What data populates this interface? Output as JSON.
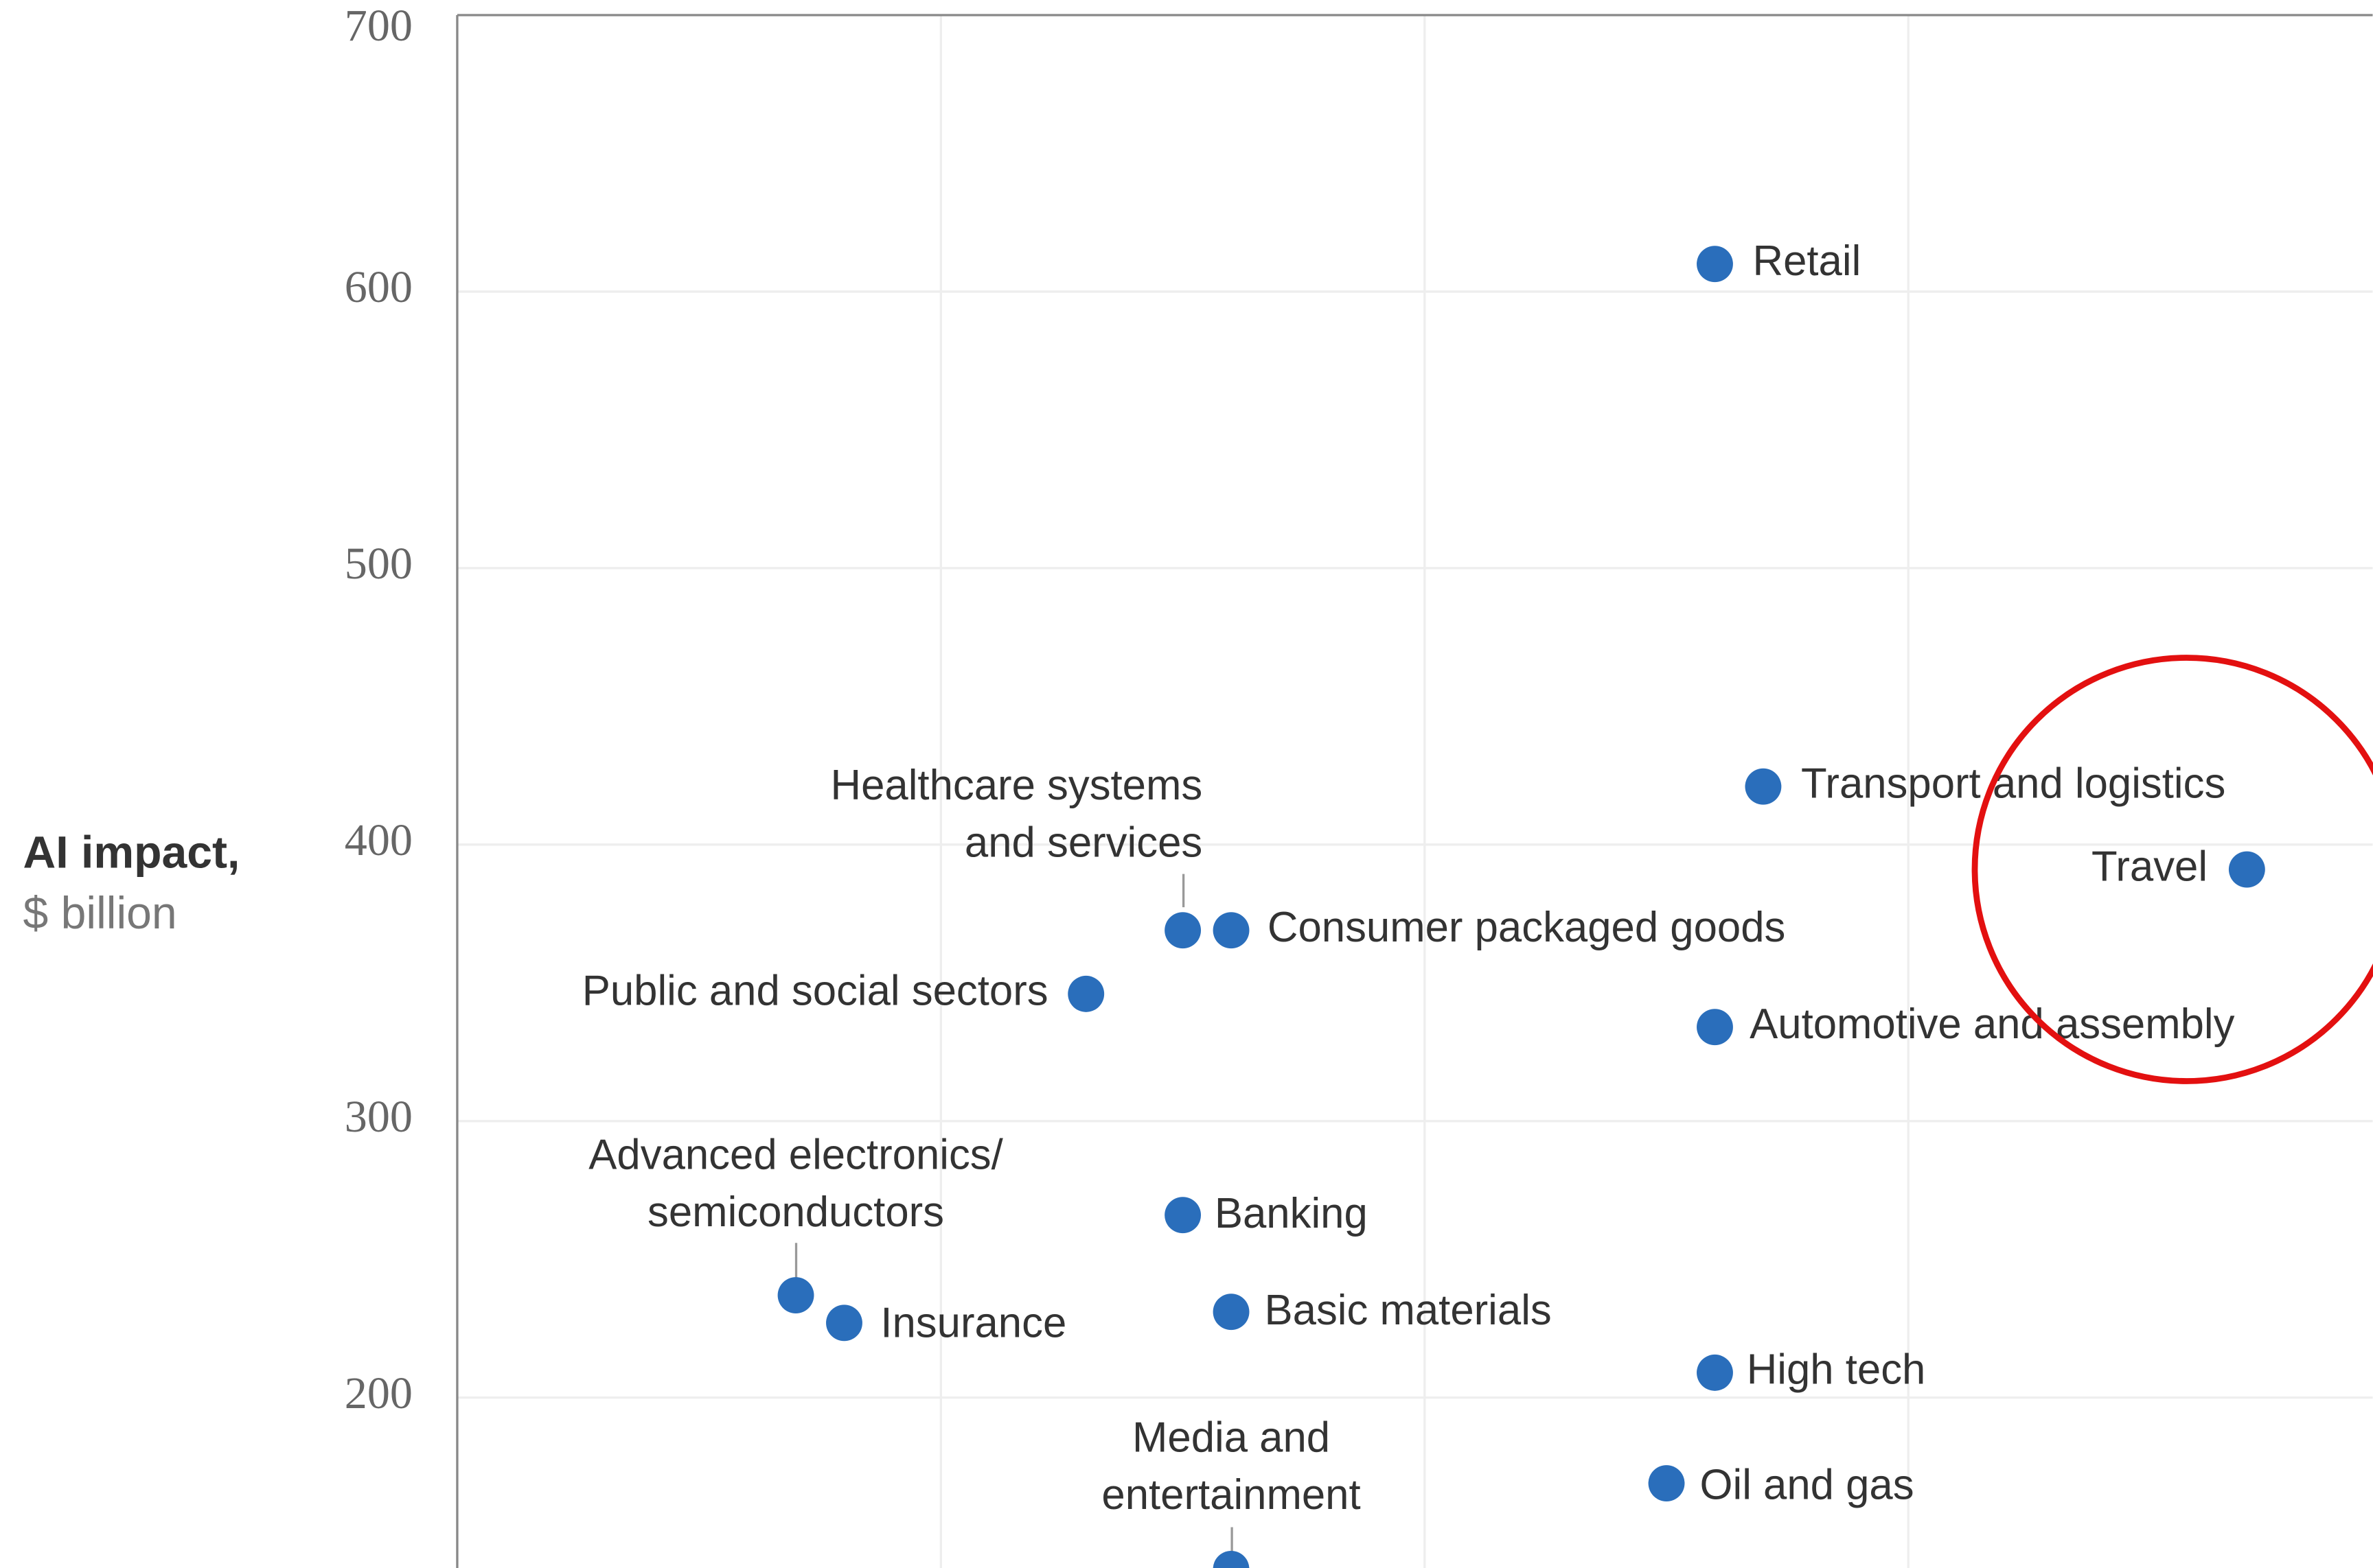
{
  "chart_data": {
    "type": "scatter",
    "y_label": [
      "AI impact,",
      "$ billion"
    ],
    "ylim": [
      140,
      700
    ],
    "yticks": [
      200,
      300,
      400,
      500,
      600,
      700
    ],
    "xlim": [
      0,
      3.96
    ],
    "xgrid": [
      1,
      2,
      3
    ],
    "grid": true,
    "color": "#2a6ebb",
    "labels": [
      "Retail",
      "Transport and logistics",
      "Travel",
      [
        "Healthcare systems",
        "and services"
      ],
      "Consumer packaged goods",
      "Public and social sectors",
      "Automotive and assembly",
      [
        "Advanced electronics/",
        "semiconductors"
      ],
      "Insurance",
      "Banking",
      "Basic materials",
      "High tech",
      "Oil and gas",
      [
        "Media and",
        "entertainment"
      ]
    ],
    "x": [
      2.6,
      2.7,
      3.7,
      1.5,
      1.6,
      1.3,
      2.6,
      0.7,
      0.8,
      1.5,
      1.6,
      2.6,
      2.5,
      1.6
    ],
    "values": [
      610,
      421,
      391,
      369,
      369,
      346,
      334,
      237,
      227,
      266,
      231,
      209,
      169,
      138
    ]
  }
}
